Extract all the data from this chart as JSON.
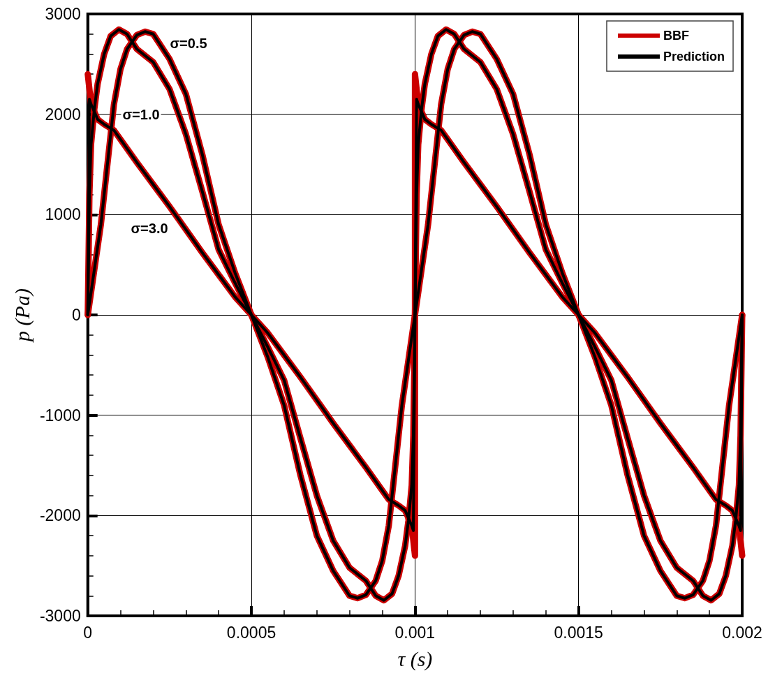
{
  "chart_data": {
    "type": "line",
    "xlabel": "τ (s)",
    "ylabel": "p (Pa)",
    "xlim": [
      0,
      0.002
    ],
    "xticks": [
      0,
      0.0005,
      0.001,
      0.0015,
      0.002
    ],
    "ylim": [
      -3000,
      3000
    ],
    "yticks": [
      -3000,
      -2000,
      -1000,
      0,
      1000,
      2000,
      3000
    ],
    "grid": true,
    "legend": "top right",
    "marker": "none",
    "line_style": "solid",
    "annotations": [
      "σ=0.5",
      "σ=1.0",
      "σ=3.0"
    ],
    "series": [
      {
        "name": "BBF",
        "color": "#cc0000",
        "x": [
          0,
          2e-05,
          4e-05,
          6e-05,
          8e-05,
          0.0001,
          0.00012,
          0.00015,
          0.000175,
          0.0002,
          0.00025,
          0.0003,
          0.00035,
          0.0004,
          0.00045,
          0.0005,
          0.00055,
          0.0006,
          0.00065,
          0.0007,
          0.00075,
          0.0008,
          0.000825,
          0.00085,
          0.00088,
          0.0009,
          0.00092,
          0.00094,
          0.00096,
          0.00098,
          0.001,
          0.00102,
          0.00104,
          0.00106,
          0.00108,
          0.0011,
          0.00112,
          0.00115,
          0.001175,
          0.0012,
          0.00125,
          0.0013,
          0.00135,
          0.0014,
          0.00145,
          0.0015,
          0.00155,
          0.0016,
          0.00165,
          0.0017,
          0.00175,
          0.0018,
          0.001825,
          0.00185,
          0.00188,
          0.0019,
          0.00192,
          0.00194,
          0.00196,
          0.00198,
          0.002
        ],
        "values": [
          0,
          450,
          900,
          1500,
          2100,
          2450,
          2650,
          2790,
          2824,
          2800,
          2550,
          2200,
          1600,
          900,
          420,
          0,
          -420,
          -900,
          -1600,
          -2200,
          -2550,
          -2800,
          -2824,
          -2790,
          -2650,
          -2450,
          -2100,
          -1500,
          -900,
          -450,
          0,
          450,
          900,
          1500,
          2100,
          2450,
          2650,
          2790,
          2824,
          2800,
          2550,
          2200,
          1600,
          900,
          420,
          0,
          -420,
          -900,
          -1600,
          -2200,
          -2550,
          -2800,
          -2824,
          -2790,
          -2650,
          -2450,
          -2100,
          -1500,
          -900,
          -450,
          0
        ]
      },
      {
        "color": "#cc0000",
        "x": [
          0,
          5e-06,
          1e-05,
          2e-05,
          3e-05,
          5e-05,
          7e-05,
          9.5e-05,
          0.00012,
          0.00015,
          0.0002,
          0.00025,
          0.0003,
          0.00035,
          0.0004,
          0.00045,
          0.0005,
          0.00055,
          0.0006,
          0.00065,
          0.0007,
          0.00075,
          0.0008,
          0.00085,
          0.00088,
          0.000905,
          0.00093,
          0.00095,
          0.00097,
          0.00098,
          0.00099,
          0.000995,
          0.001,
          0.001005,
          0.00101,
          0.00102,
          0.00103,
          0.00105,
          0.00107,
          0.001095,
          0.00112,
          0.00115,
          0.0012,
          0.00125,
          0.0013,
          0.00135,
          0.0014,
          0.00145,
          0.0015,
          0.00155,
          0.0016,
          0.00165,
          0.0017,
          0.00175,
          0.0018,
          0.00185,
          0.00188,
          0.001905,
          0.00193,
          0.00195,
          0.00197,
          0.00198,
          0.00199,
          0.001995,
          0.002
        ],
        "values": [
          0,
          1200,
          1700,
          2050,
          2300,
          2600,
          2780,
          2845,
          2800,
          2650,
          2520,
          2250,
          1800,
          1230,
          650,
          320,
          0,
          -320,
          -650,
          -1230,
          -1800,
          -2250,
          -2520,
          -2650,
          -2800,
          -2845,
          -2780,
          -2600,
          -2300,
          -2050,
          -1700,
          -1200,
          0,
          1200,
          1700,
          2050,
          2300,
          2600,
          2780,
          2845,
          2800,
          2650,
          2520,
          2250,
          1800,
          1230,
          650,
          320,
          0,
          -320,
          -650,
          -1230,
          -1800,
          -2250,
          -2520,
          -2650,
          -2800,
          -2845,
          -2780,
          -2600,
          -2300,
          -2050,
          -1700,
          -1200,
          0
        ]
      },
      {
        "color": "#cc0000",
        "x": [
          0,
          1e-05,
          3e-05,
          5e-05,
          8e-05,
          0.0001,
          0.00015,
          0.0002,
          0.00025,
          0.0003,
          0.00035,
          0.0004,
          0.00045,
          0.0005,
          0.00055,
          0.0006,
          0.00065,
          0.0007,
          0.00075,
          0.0008,
          0.00085,
          0.0009,
          0.00092,
          0.00095,
          0.00097,
          0.00099,
          0.001,
          0.001,
          0.00101,
          0.00103,
          0.00105,
          0.00108,
          0.0011,
          0.00115,
          0.0012,
          0.00125,
          0.0013,
          0.00135,
          0.0014,
          0.00145,
          0.0015,
          0.00155,
          0.0016,
          0.00165,
          0.0017,
          0.00175,
          0.0018,
          0.00185,
          0.0019,
          0.00192,
          0.00195,
          0.00197,
          0.00199,
          0.002
        ],
        "values": [
          2400,
          2100,
          1950,
          1900,
          1840,
          1750,
          1520,
          1300,
          1080,
          850,
          620,
          400,
          180,
          0,
          -180,
          -400,
          -620,
          -850,
          -1080,
          -1300,
          -1520,
          -1750,
          -1840,
          -1900,
          -1950,
          -2100,
          -2400,
          2400,
          2100,
          1950,
          1900,
          1840,
          1750,
          1520,
          1300,
          1080,
          850,
          620,
          400,
          180,
          0,
          -180,
          -400,
          -620,
          -850,
          -1080,
          -1300,
          -1520,
          -1750,
          -1840,
          -1900,
          -1950,
          -2100,
          -2400
        ]
      },
      {
        "name": "Prediction",
        "color": "#000000",
        "x": [
          0,
          2e-05,
          4e-05,
          6e-05,
          8e-05,
          0.0001,
          0.00012,
          0.00015,
          0.000175,
          0.0002,
          0.00025,
          0.0003,
          0.00035,
          0.0004,
          0.00045,
          0.0005,
          0.00055,
          0.0006,
          0.00065,
          0.0007,
          0.00075,
          0.0008,
          0.000825,
          0.00085,
          0.00088,
          0.0009,
          0.00092,
          0.00094,
          0.00096,
          0.00098,
          0.001,
          0.00102,
          0.00104,
          0.00106,
          0.00108,
          0.0011,
          0.00112,
          0.00115,
          0.001175,
          0.0012,
          0.00125,
          0.0013,
          0.00135,
          0.0014,
          0.00145,
          0.0015,
          0.00155,
          0.0016,
          0.00165,
          0.0017,
          0.00175,
          0.0018,
          0.001825,
          0.00185,
          0.00188,
          0.0019,
          0.00192,
          0.00194,
          0.00196,
          0.00198,
          0.002
        ],
        "values": [
          0,
          450,
          900,
          1500,
          2100,
          2450,
          2650,
          2790,
          2824,
          2800,
          2550,
          2200,
          1600,
          900,
          420,
          0,
          -420,
          -900,
          -1600,
          -2200,
          -2550,
          -2800,
          -2824,
          -2790,
          -2650,
          -2450,
          -2100,
          -1500,
          -900,
          -450,
          0,
          450,
          900,
          1500,
          2100,
          2450,
          2650,
          2790,
          2824,
          2800,
          2550,
          2200,
          1600,
          900,
          420,
          0,
          -420,
          -900,
          -1600,
          -2200,
          -2550,
          -2800,
          -2824,
          -2790,
          -2650,
          -2450,
          -2100,
          -1500,
          -900,
          -450,
          0
        ]
      },
      {
        "color": "#000000",
        "x": [
          0,
          5e-06,
          1e-05,
          2e-05,
          3e-05,
          5e-05,
          7e-05,
          9.5e-05,
          0.00012,
          0.00015,
          0.0002,
          0.00025,
          0.0003,
          0.00035,
          0.0004,
          0.00045,
          0.0005,
          0.00055,
          0.0006,
          0.00065,
          0.0007,
          0.00075,
          0.0008,
          0.00085,
          0.00088,
          0.000905,
          0.00093,
          0.00095,
          0.00097,
          0.00098,
          0.00099,
          0.000995,
          0.001,
          0.001005,
          0.00101,
          0.00102,
          0.00103,
          0.00105,
          0.00107,
          0.001095,
          0.00112,
          0.00115,
          0.0012,
          0.00125,
          0.0013,
          0.00135,
          0.0014,
          0.00145,
          0.0015,
          0.00155,
          0.0016,
          0.00165,
          0.0017,
          0.00175,
          0.0018,
          0.00185,
          0.00188,
          0.001905,
          0.00193,
          0.00195,
          0.00197,
          0.00198,
          0.00199,
          0.001995,
          0.002
        ],
        "values": [
          0,
          1200,
          1700,
          2050,
          2300,
          2600,
          2780,
          2845,
          2800,
          2650,
          2520,
          2250,
          1800,
          1230,
          650,
          320,
          0,
          -320,
          -650,
          -1230,
          -1800,
          -2250,
          -2520,
          -2650,
          -2800,
          -2845,
          -2780,
          -2600,
          -2300,
          -2050,
          -1700,
          -1200,
          0,
          1200,
          1700,
          2050,
          2300,
          2600,
          2780,
          2845,
          2800,
          2650,
          2520,
          2250,
          1800,
          1230,
          650,
          320,
          0,
          -320,
          -650,
          -1230,
          -1800,
          -2250,
          -2520,
          -2650,
          -2800,
          -2845,
          -2780,
          -2600,
          -2300,
          -2050,
          -1700,
          -1200,
          0
        ]
      },
      {
        "color": "#000000",
        "x": [
          0,
          5e-06,
          1e-05,
          3e-05,
          5e-05,
          8e-05,
          0.0001,
          0.00015,
          0.0002,
          0.00025,
          0.0003,
          0.00035,
          0.0004,
          0.00045,
          0.0005,
          0.00055,
          0.0006,
          0.00065,
          0.0007,
          0.00075,
          0.0008,
          0.00085,
          0.0009,
          0.00092,
          0.00095,
          0.00097,
          0.00099,
          0.000995,
          0.001,
          0.001005,
          0.00101,
          0.00103,
          0.00105,
          0.00108,
          0.0011,
          0.00115,
          0.0012,
          0.00125,
          0.0013,
          0.00135,
          0.0014,
          0.00145,
          0.0015,
          0.00155,
          0.0016,
          0.00165,
          0.0017,
          0.00175,
          0.0018,
          0.00185,
          0.0019,
          0.00192,
          0.00195,
          0.00197,
          0.00199,
          0.001995,
          0.002
        ],
        "values": [
          0,
          2150,
          2100,
          1950,
          1900,
          1840,
          1750,
          1520,
          1300,
          1080,
          850,
          620,
          400,
          180,
          0,
          -180,
          -400,
          -620,
          -850,
          -1080,
          -1300,
          -1520,
          -1750,
          -1840,
          -1900,
          -1950,
          -2100,
          -2150,
          0,
          2150,
          2100,
          1950,
          1900,
          1840,
          1750,
          1520,
          1300,
          1080,
          850,
          620,
          400,
          180,
          0,
          -180,
          -400,
          -620,
          -850,
          -1080,
          -1300,
          -1520,
          -1750,
          -1840,
          -1900,
          -1950,
          -2100,
          -2150,
          0
        ]
      }
    ]
  }
}
